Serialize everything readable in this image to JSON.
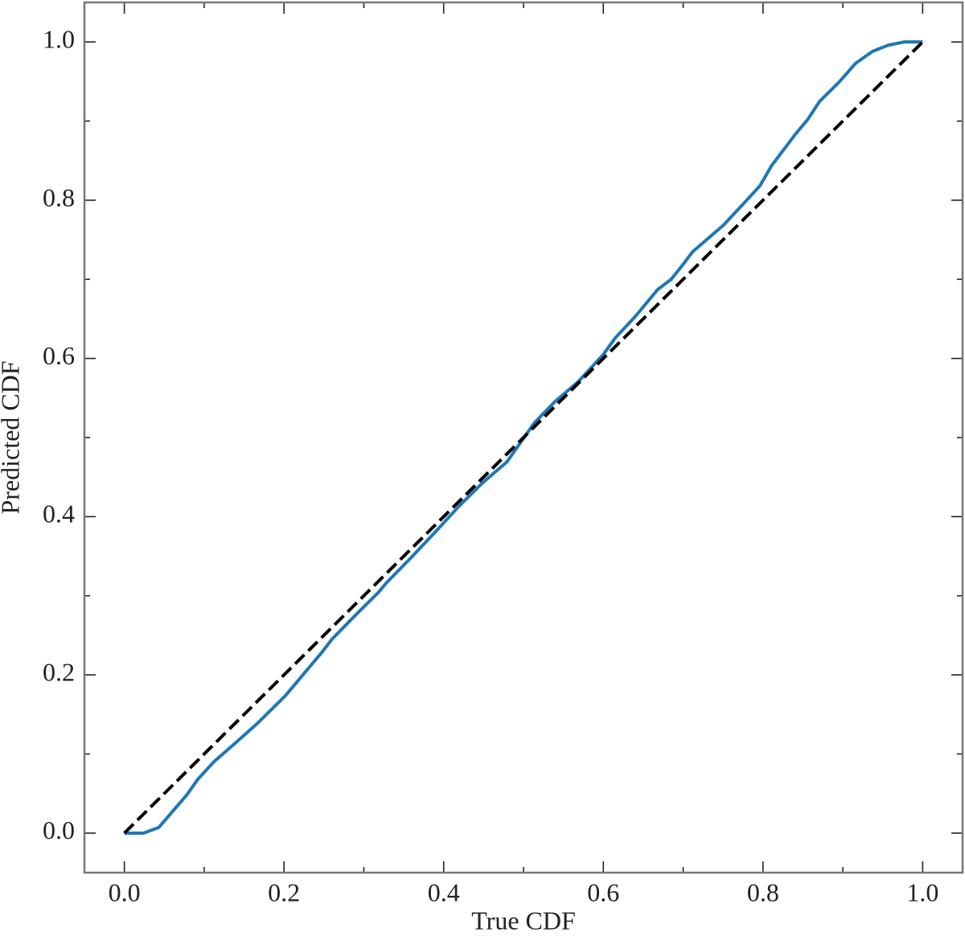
{
  "chart_data": {
    "type": "line",
    "xlabel": "True CDF",
    "ylabel": "Predicted CDF",
    "xlim": [
      -0.05,
      1.05
    ],
    "ylim": [
      -0.05,
      1.05
    ],
    "xticks": [
      {
        "value": 0,
        "label": "0.0"
      },
      0.2,
      0.4,
      0.6,
      0.8,
      {
        "value": 1,
        "label": "1.0"
      }
    ],
    "yticks": [
      {
        "value": 0,
        "label": "0.0"
      },
      0.2,
      0.4,
      0.6,
      0.8,
      {
        "value": 1,
        "label": "1.0"
      }
    ],
    "xminorticks": [
      0.1,
      0.3,
      0.5,
      0.7,
      0.9
    ],
    "yminorticks": [
      0.1,
      0.3,
      0.5,
      0.7,
      0.9
    ],
    "series": [
      {
        "color": "#1f77b4",
        "dash": false,
        "x": [
          0,
          0.024,
          0.043,
          0.078,
          0.092,
          0.112,
          0.137,
          0.167,
          0.202,
          0.222,
          0.247,
          0.26,
          0.288,
          0.318,
          0.328,
          0.358,
          0.388,
          0.419,
          0.449,
          0.479,
          0.514,
          0.539,
          0.569,
          0.6,
          0.615,
          0.64,
          0.668,
          0.685,
          0.7,
          0.712,
          0.75,
          0.775,
          0.796,
          0.811,
          0.841,
          0.856,
          0.871,
          0.896,
          0.916,
          0.937,
          0.957,
          0.977,
          1.0
        ],
        "values": [
          0,
          0,
          0.007,
          0.048,
          0.068,
          0.09,
          0.112,
          0.139,
          0.174,
          0.198,
          0.228,
          0.245,
          0.274,
          0.304,
          0.316,
          0.347,
          0.379,
          0.413,
          0.443,
          0.469,
          0.519,
          0.545,
          0.571,
          0.605,
          0.626,
          0.653,
          0.687,
          0.7,
          0.719,
          0.735,
          0.768,
          0.795,
          0.818,
          0.844,
          0.884,
          0.902,
          0.925,
          0.95,
          0.973,
          0.988,
          0.996,
          1.0,
          1.0
        ]
      },
      {
        "color": "#000000",
        "dash": true,
        "x": [
          0,
          1
        ],
        "values": [
          0,
          1
        ]
      }
    ]
  }
}
